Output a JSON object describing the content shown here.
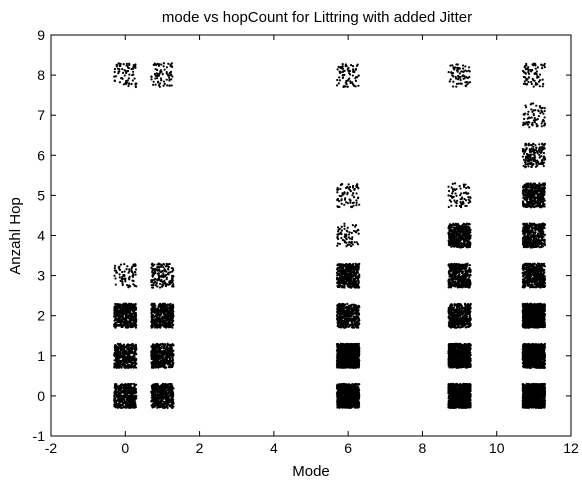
{
  "chart_data": {
    "type": "scatter",
    "title": "mode vs hopCount for Littring with added Jitter",
    "xlabel": "Mode",
    "ylabel": "Anzahl Hop",
    "xlim": [
      -2,
      12
    ],
    "ylim": [
      -1,
      9
    ],
    "xticks": [
      -2,
      0,
      2,
      4,
      6,
      8,
      10,
      12
    ],
    "yticks": [
      -1,
      0,
      1,
      2,
      3,
      4,
      5,
      6,
      7,
      8,
      9
    ],
    "grid": false,
    "jitter_half_width": 0.3,
    "marker_color": "#000000",
    "clusters": [
      {
        "mode": 0,
        "hop": 0,
        "density": "dense"
      },
      {
        "mode": 0,
        "hop": 1,
        "density": "dense"
      },
      {
        "mode": 0,
        "hop": 2,
        "density": "dense"
      },
      {
        "mode": 0,
        "hop": 3,
        "density": "sparse"
      },
      {
        "mode": 0,
        "hop": 8,
        "density": "sparse"
      },
      {
        "mode": 1,
        "hop": 0,
        "density": "dense"
      },
      {
        "mode": 1,
        "hop": 1,
        "density": "dense"
      },
      {
        "mode": 1,
        "hop": 2,
        "density": "dense"
      },
      {
        "mode": 1,
        "hop": 3,
        "density": "medium"
      },
      {
        "mode": 1,
        "hop": 8,
        "density": "sparse"
      },
      {
        "mode": 6,
        "hop": 0,
        "density": "solid"
      },
      {
        "mode": 6,
        "hop": 1,
        "density": "solid"
      },
      {
        "mode": 6,
        "hop": 2,
        "density": "dense"
      },
      {
        "mode": 6,
        "hop": 3,
        "density": "dense"
      },
      {
        "mode": 6,
        "hop": 4,
        "density": "sparse"
      },
      {
        "mode": 6,
        "hop": 5,
        "density": "sparse"
      },
      {
        "mode": 6,
        "hop": 8,
        "density": "sparse"
      },
      {
        "mode": 9,
        "hop": 0,
        "density": "solid"
      },
      {
        "mode": 9,
        "hop": 1,
        "density": "solid"
      },
      {
        "mode": 9,
        "hop": 2,
        "density": "dense"
      },
      {
        "mode": 9,
        "hop": 3,
        "density": "dense"
      },
      {
        "mode": 9,
        "hop": 4,
        "density": "dense"
      },
      {
        "mode": 9,
        "hop": 5,
        "density": "sparse"
      },
      {
        "mode": 9,
        "hop": 8,
        "density": "sparse"
      },
      {
        "mode": 11,
        "hop": 0,
        "density": "solid"
      },
      {
        "mode": 11,
        "hop": 1,
        "density": "solid"
      },
      {
        "mode": 11,
        "hop": 2,
        "density": "solid"
      },
      {
        "mode": 11,
        "hop": 3,
        "density": "dense"
      },
      {
        "mode": 11,
        "hop": 4,
        "density": "dense"
      },
      {
        "mode": 11,
        "hop": 5,
        "density": "dense"
      },
      {
        "mode": 11,
        "hop": 6,
        "density": "medium"
      },
      {
        "mode": 11,
        "hop": 7,
        "density": "sparse"
      },
      {
        "mode": 11,
        "hop": 8,
        "density": "sparse"
      }
    ]
  }
}
